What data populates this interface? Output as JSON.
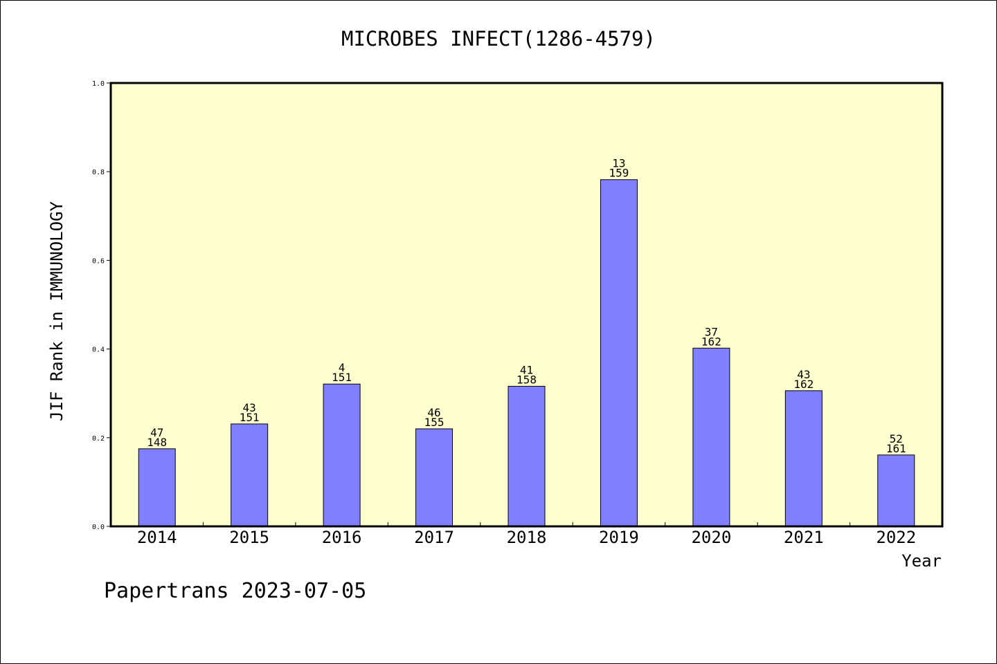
{
  "chart_data": {
    "type": "bar",
    "title": "MICROBES INFECT(1286-4579)",
    "xlabel": "Year",
    "ylabel": "JIF Rank in IMMUNOLOGY",
    "ylim": [
      0,
      1.0
    ],
    "yticks": [
      "0.0",
      "0.2",
      "0.4",
      "0.6",
      "0.8",
      "1.0"
    ],
    "grid": false,
    "categories": [
      "2014",
      "2015",
      "2016",
      "2017",
      "2018",
      "2019",
      "2020",
      "2021",
      "2022"
    ],
    "values": [
      0.175,
      0.231,
      0.321,
      0.22,
      0.316,
      0.782,
      0.402,
      0.306,
      0.161
    ],
    "ranks": [
      "47",
      "43",
      "4",
      "46",
      "41",
      "13",
      "37",
      "43",
      "52"
    ],
    "totals": [
      "148",
      "151",
      "151",
      "155",
      "158",
      "159",
      "162",
      "162",
      "161"
    ],
    "colors": {
      "bar": "#8080ff",
      "plot_background": "#ffffd0"
    }
  },
  "footer": {
    "text": "Papertrans 2023-07-05"
  }
}
